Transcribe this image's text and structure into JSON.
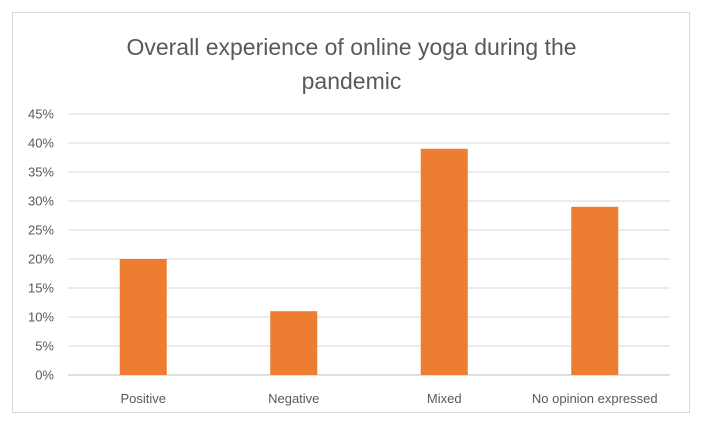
{
  "chart_data": {
    "type": "bar",
    "title": "Overall experience of online yoga during the\npandemic",
    "categories": [
      "Positive",
      "Negative",
      "Mixed",
      "No opinion expressed"
    ],
    "values": [
      0.2,
      0.11,
      0.39,
      0.29
    ],
    "yticks": [
      "0%",
      "5%",
      "10%",
      "15%",
      "20%",
      "25%",
      "30%",
      "35%",
      "40%",
      "45%"
    ],
    "ylim": [
      0,
      0.45
    ],
    "grid": true,
    "legend": "none",
    "bar_color": "#ED7D31"
  }
}
